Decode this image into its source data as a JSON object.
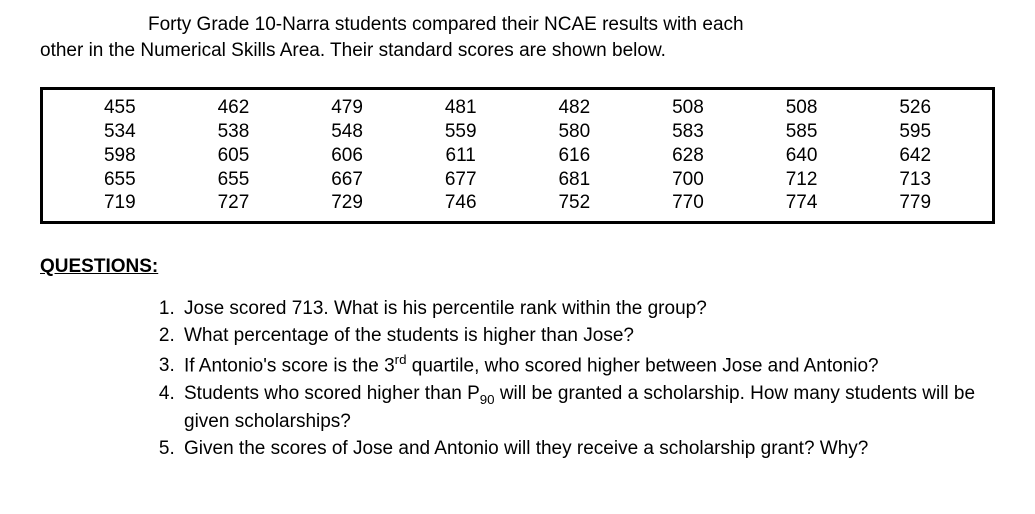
{
  "intro": {
    "line1": "Forty Grade 10-Narra students compared their NCAE results with each",
    "line2": "other in the Numerical Skills Area. Their standard scores are shown below."
  },
  "table": {
    "type": "table",
    "background_color": "#ffffff",
    "border_color": "#000000",
    "text_color": "#000000",
    "font_size": 19,
    "columns": 8,
    "rows": [
      [
        455,
        462,
        479,
        481,
        482,
        508,
        508,
        526
      ],
      [
        534,
        538,
        548,
        559,
        580,
        583,
        585,
        595
      ],
      [
        598,
        605,
        606,
        611,
        616,
        628,
        640,
        642
      ],
      [
        655,
        655,
        667,
        677,
        681,
        700,
        712,
        713
      ],
      [
        719,
        727,
        729,
        746,
        752,
        770,
        774,
        779
      ]
    ]
  },
  "questions_heading": "QUESTIONS:",
  "questions": [
    {
      "text": "Jose scored 713. What is his percentile rank within the group?"
    },
    {
      "text": "What percentage of the students is higher than Jose?"
    },
    {
      "pre": "If Antonio's score is the 3",
      "ord": "rd",
      "post": " quartile, who scored higher between Jose and Antonio?"
    },
    {
      "pre": "Students who scored higher than P",
      "sub": "90",
      "post": " will be granted a scholarship. How many students will be given scholarships?"
    },
    {
      "text": "Given the scores of Jose and Antonio will they receive a scholarship grant? Why?"
    }
  ],
  "styling": {
    "body_font": "Arial",
    "body_font_size": 19,
    "body_text_color": "#000000",
    "background_color": "#ffffff"
  }
}
